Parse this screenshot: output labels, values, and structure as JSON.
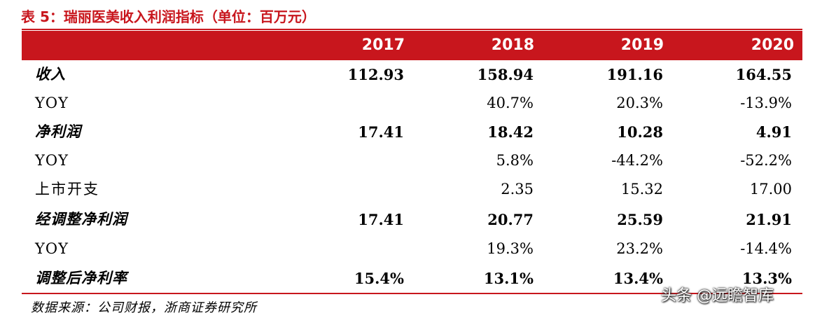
{
  "title": "表 5：瑞丽医美收入利润指标（单位：百万元）",
  "years": [
    "2017",
    "2018",
    "2019",
    "2020"
  ],
  "rows": [
    {
      "label": "收入",
      "values": [
        "112.93",
        "158.94",
        "191.16",
        "164.55"
      ],
      "style": "bold"
    },
    {
      "label": "YOY",
      "values": [
        "",
        "40.7%",
        "20.3%",
        "-13.9%"
      ],
      "style": "yoy"
    },
    {
      "label": "净利润",
      "values": [
        "17.41",
        "18.42",
        "10.28",
        "4.91"
      ],
      "style": "bold"
    },
    {
      "label": "YOY",
      "values": [
        "",
        "5.8%",
        "-44.2%",
        "-52.2%"
      ],
      "style": "yoy"
    },
    {
      "label": "上市开支",
      "values": [
        "",
        "2.35",
        "15.32",
        "17.00"
      ],
      "style": "plain"
    },
    {
      "label": "经调整净利润",
      "values": [
        "17.41",
        "20.77",
        "25.59",
        "21.91"
      ],
      "style": "bold"
    },
    {
      "label": "YOY",
      "values": [
        "",
        "19.3%",
        "23.2%",
        "-14.4%"
      ],
      "style": "yoy"
    },
    {
      "label": "调整后净利率",
      "values": [
        "15.4%",
        "13.1%",
        "13.4%",
        "13.3%"
      ],
      "style": "bold"
    }
  ],
  "source": "数据来源：公司财报，浙商证券研究所",
  "watermark": "头条 @远瞻智库",
  "colors": {
    "accent": "#c8161d"
  }
}
